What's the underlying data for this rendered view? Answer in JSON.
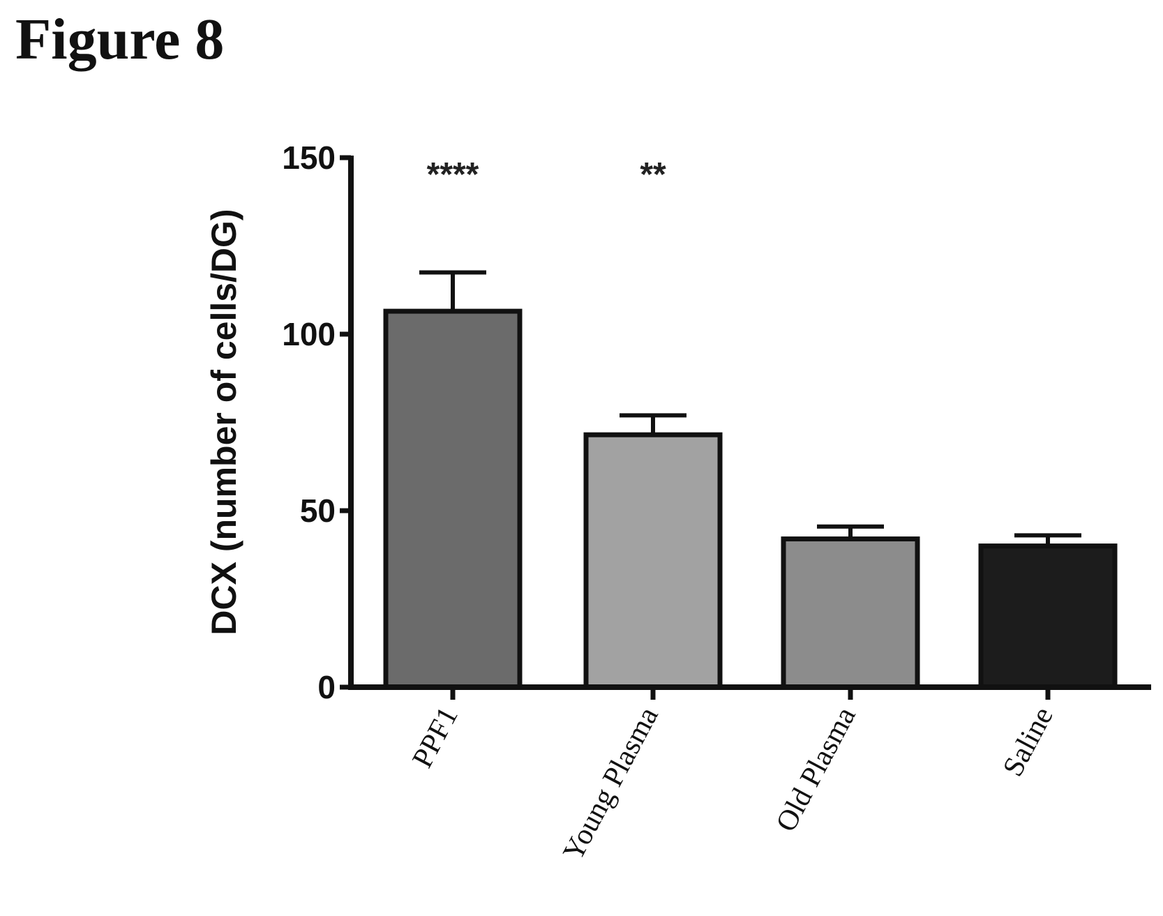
{
  "figure_title": "Figure 8",
  "chart_data": {
    "type": "bar",
    "title": "",
    "xlabel": "",
    "ylabel": "DCX (number of cells/DG)",
    "ylim": [
      0,
      150
    ],
    "yticks": [
      0,
      50,
      100,
      150
    ],
    "categories": [
      "PPF1",
      "Young Plasma",
      "Old Plasma",
      "Saline"
    ],
    "values": [
      106.5,
      71.5,
      42,
      40
    ],
    "error_upper": [
      117.5,
      77,
      45.5,
      43
    ],
    "significance": [
      "****",
      "**",
      "",
      ""
    ],
    "colors": [
      "#6b6b6b",
      "#a2a2a2",
      "#8c8c8c",
      "#1c1c1c"
    ],
    "grid": false
  }
}
